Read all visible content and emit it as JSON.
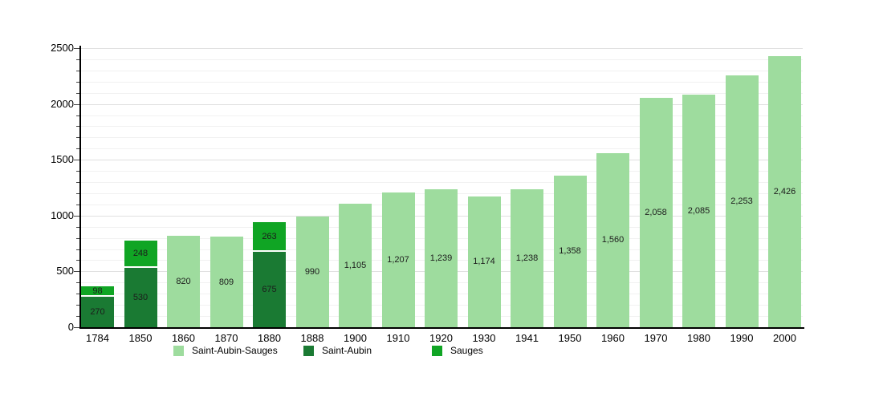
{
  "chart_data": {
    "type": "bar",
    "stacked": true,
    "title": "",
    "xlabel": "",
    "ylabel": "",
    "ylim": [
      0,
      2500
    ],
    "yticks": [
      0,
      500,
      1000,
      1500,
      2000,
      2500
    ],
    "minor_grid_step": 100,
    "grid": true,
    "legend_position": "bottom",
    "categories": [
      "1784",
      "1850",
      "1860",
      "1870",
      "1880",
      "1888",
      "1900",
      "1910",
      "1920",
      "1930",
      "1941",
      "1950",
      "1960",
      "1970",
      "1980",
      "1990",
      "2000"
    ],
    "series": [
      {
        "name": "Saint-Aubin-Sauges",
        "color": "#9edc9e",
        "values": [
          null,
          null,
          820,
          809,
          null,
          990,
          1105,
          1207,
          1239,
          1174,
          1238,
          1358,
          1560,
          2058,
          2085,
          2253,
          2426
        ],
        "value_labels": [
          "",
          "",
          "820",
          "809",
          "",
          "990",
          "1,105",
          "1,207",
          "1,239",
          "1,174",
          "1,238",
          "1,358",
          "1,560",
          "2,058",
          "2,085",
          "2,253",
          "2,426"
        ]
      },
      {
        "name": "Saint-Aubin",
        "color": "#1a7a33",
        "values": [
          270,
          530,
          null,
          null,
          675,
          null,
          null,
          null,
          null,
          null,
          null,
          null,
          null,
          null,
          null,
          null,
          null
        ],
        "value_labels": [
          "270",
          "530",
          "",
          "",
          "675",
          "",
          "",
          "",
          "",
          "",
          "",
          "",
          "",
          "",
          "",
          "",
          ""
        ]
      },
      {
        "name": "Sauges",
        "color": "#10a524",
        "values": [
          98,
          248,
          null,
          null,
          263,
          null,
          null,
          null,
          null,
          null,
          null,
          null,
          null,
          null,
          null,
          null,
          null
        ],
        "value_labels": [
          "98",
          "248",
          "",
          "",
          "263",
          "",
          "",
          "",
          "",
          "",
          "",
          "",
          "",
          "",
          "",
          "",
          ""
        ]
      }
    ]
  },
  "legend": {
    "items": [
      {
        "label": "Saint-Aubin-Sauges",
        "color": "#9edc9e"
      },
      {
        "label": "Saint-Aubin",
        "color": "#1a7a33"
      },
      {
        "label": "Sauges",
        "color": "#10a524"
      }
    ]
  }
}
